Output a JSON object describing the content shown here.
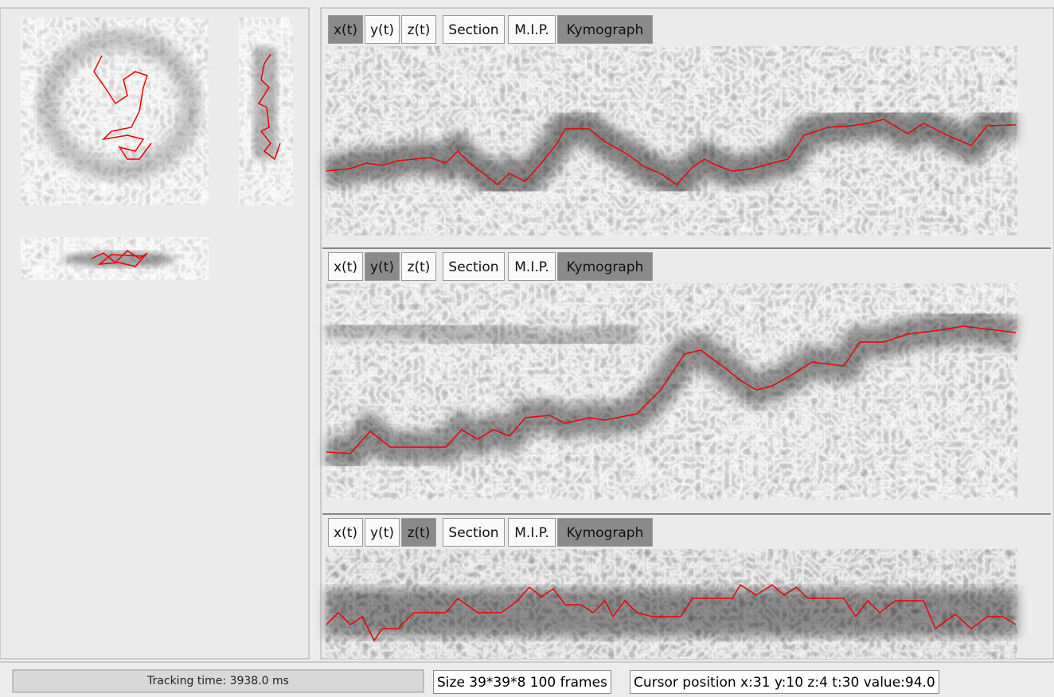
{
  "panels": [
    {
      "buttons": [
        {
          "label": "x(t)",
          "pressed": true
        },
        {
          "label": "y(t)",
          "pressed": false
        },
        {
          "label": "z(t)",
          "pressed": false
        },
        {
          "label": "Section",
          "pressed": false
        },
        {
          "label": "M.I.P.",
          "pressed": false
        },
        {
          "label": "Kymograph",
          "pressed": true
        }
      ]
    },
    {
      "buttons": [
        {
          "label": "x(t)",
          "pressed": false
        },
        {
          "label": "y(t)",
          "pressed": true
        },
        {
          "label": "z(t)",
          "pressed": false
        },
        {
          "label": "Section",
          "pressed": false
        },
        {
          "label": "M.I.P.",
          "pressed": false
        },
        {
          "label": "Kymograph",
          "pressed": true
        }
      ]
    },
    {
      "buttons": [
        {
          "label": "x(t)",
          "pressed": false
        },
        {
          "label": "y(t)",
          "pressed": false
        },
        {
          "label": "z(t)",
          "pressed": true
        },
        {
          "label": "Section",
          "pressed": false
        },
        {
          "label": "M.I.P.",
          "pressed": false
        },
        {
          "label": "Kymograph",
          "pressed": true
        }
      ]
    }
  ],
  "status": {
    "progress": "Tracking  time: 3938.0 ms",
    "size": "Size 39*39*8 100 frames",
    "cursor": "Cursor position x:31 y:10 z:4 t:30 value:94.0"
  }
}
